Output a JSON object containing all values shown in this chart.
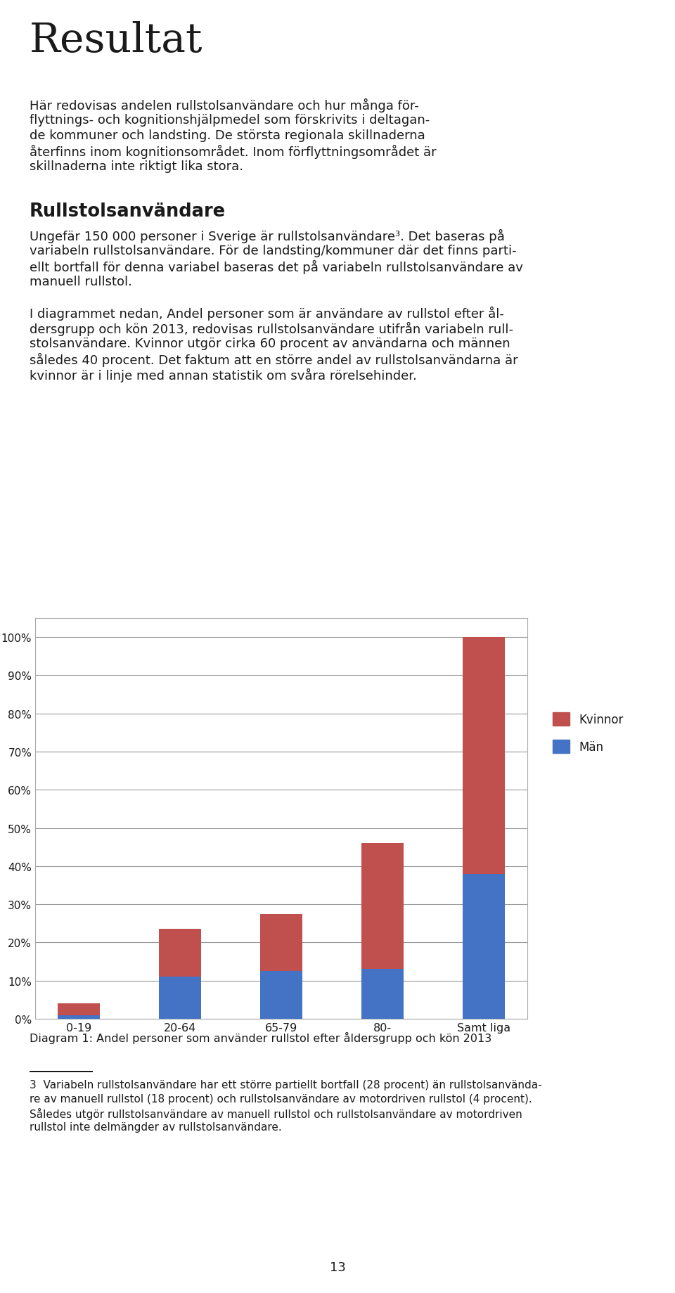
{
  "title_main": "Resultat",
  "para1_lines": [
    "Här redovisas andelen rullstolsanvändare och hur många för-",
    "flyttnings- och kognitionshjälpmedel som förskrivits i deltagan-",
    "de kommuner och landsting. De största regionala skillnaderna",
    "återfinns inom kognitionsområdet. Inom förflyttningsområdet är",
    "skillnaderna inte riktigt lika stora."
  ],
  "heading2": "Rullstolsanvändare",
  "para2_lines": [
    "Ungefär 150 000 personer i Sverige är rullstolsanvändare³. Det baseras på",
    "variabeln rullstolsanvändare. För de landsting/kommuner där det finns parti-",
    "ellt bortfall för denna variabel baseras det på variabeln rullstolsanvändare av",
    "manuell rullstol."
  ],
  "para3_lines": [
    "I diagrammet nedan, Andel personer som är användare av rullstol efter ål-",
    "dersgrupp och kön 2013, redovisas rullstolsanvändare utifrån variabeln rull-",
    "stolsanvändare. Kvinnor utgör cirka 60 procent av användarna och männen",
    "således 40 procent. Det faktum att en större andel av rullstolsanvändarna är",
    "kvinnor är i linje med annan statistik om svåra rörelsehinder."
  ],
  "categories": [
    "0-19",
    "20-64",
    "65-79",
    "80-",
    "Samt liga"
  ],
  "man_values": [
    1.0,
    11.0,
    12.5,
    13.0,
    38.0
  ],
  "kvinnor_values": [
    3.0,
    12.5,
    15.0,
    33.0,
    62.0
  ],
  "man_color": "#4472C4",
  "kvinnor_color": "#C0504D",
  "chart_caption": "Diagram 1: Andel personer som använder rullstol efter åldersgrupp och kön 2013",
  "footnote_lines": [
    "3  Variabeln rullstolsanvändare har ett större partiellt bortfall (28 procent) än rullstolsanvända-",
    "re av manuell rullstol (18 procent) och rullstolsanvändare av motordriven rullstol (4 procent).",
    "Således utgör rullstolsanvändare av manuell rullstol och rullstolsanvändare av motordriven",
    "rullstol inte delmängder av rullstolsanvändare."
  ],
  "page_number": "13",
  "background_color": "#ffffff",
  "text_color": "#1a1a1a",
  "grid_color": "#999999",
  "chart_border_color": "#aaaaaa",
  "yticks": [
    0,
    10,
    20,
    30,
    40,
    50,
    60,
    70,
    80,
    90,
    100
  ]
}
